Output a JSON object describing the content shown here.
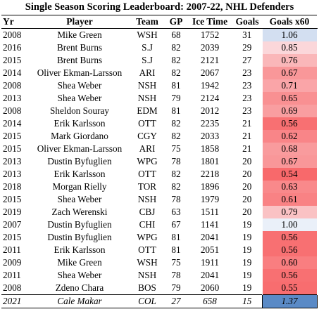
{
  "chart_data": {
    "type": "table",
    "title": "Single Season Scoring Leaderboard: 2007-22, NHL Defenders",
    "columns": [
      "Yr",
      "Player",
      "Team",
      "GP",
      "Ice Time",
      "Goals",
      "Goals x60"
    ],
    "rows": [
      {
        "yr": "2008",
        "player": "Mike Green",
        "team": "WSH",
        "gp": "68",
        "toi": "1752",
        "goals": "31",
        "gx60": "1.06"
      },
      {
        "yr": "2016",
        "player": "Brent Burns",
        "team": "S.J",
        "gp": "82",
        "toi": "2039",
        "goals": "29",
        "gx60": "0.85"
      },
      {
        "yr": "2015",
        "player": "Brent Burns",
        "team": "S.J",
        "gp": "82",
        "toi": "2121",
        "goals": "27",
        "gx60": "0.76"
      },
      {
        "yr": "2014",
        "player": "Oliver Ekman-Larsson",
        "team": "ARI",
        "gp": "82",
        "toi": "2067",
        "goals": "23",
        "gx60": "0.67"
      },
      {
        "yr": "2008",
        "player": "Shea Weber",
        "team": "NSH",
        "gp": "81",
        "toi": "1942",
        "goals": "23",
        "gx60": "0.71"
      },
      {
        "yr": "2013",
        "player": "Shea Weber",
        "team": "NSH",
        "gp": "79",
        "toi": "2124",
        "goals": "23",
        "gx60": "0.65"
      },
      {
        "yr": "2008",
        "player": "Sheldon Souray",
        "team": "EDM",
        "gp": "81",
        "toi": "2012",
        "goals": "23",
        "gx60": "0.69"
      },
      {
        "yr": "2014",
        "player": "Erik Karlsson",
        "team": "OTT",
        "gp": "82",
        "toi": "2235",
        "goals": "21",
        "gx60": "0.56"
      },
      {
        "yr": "2015",
        "player": "Mark Giordano",
        "team": "CGY",
        "gp": "82",
        "toi": "2033",
        "goals": "21",
        "gx60": "0.62"
      },
      {
        "yr": "2015",
        "player": "Oliver Ekman-Larsson",
        "team": "ARI",
        "gp": "75",
        "toi": "1858",
        "goals": "21",
        "gx60": "0.68"
      },
      {
        "yr": "2013",
        "player": "Dustin Byfuglien",
        "team": "WPG",
        "gp": "78",
        "toi": "1801",
        "goals": "20",
        "gx60": "0.67"
      },
      {
        "yr": "2013",
        "player": "Erik Karlsson",
        "team": "OTT",
        "gp": "82",
        "toi": "2218",
        "goals": "20",
        "gx60": "0.54"
      },
      {
        "yr": "2018",
        "player": "Morgan Rielly",
        "team": "TOR",
        "gp": "82",
        "toi": "1896",
        "goals": "20",
        "gx60": "0.63"
      },
      {
        "yr": "2015",
        "player": "Shea Weber",
        "team": "NSH",
        "gp": "78",
        "toi": "1979",
        "goals": "20",
        "gx60": "0.61"
      },
      {
        "yr": "2019",
        "player": "Zach Werenski",
        "team": "CBJ",
        "gp": "63",
        "toi": "1511",
        "goals": "20",
        "gx60": "0.79"
      },
      {
        "yr": "2007",
        "player": "Dustin Byfuglien",
        "team": "CHI",
        "gp": "67",
        "toi": "1141",
        "goals": "19",
        "gx60": "1.00"
      },
      {
        "yr": "2015",
        "player": "Dustin Byfuglien",
        "team": "WPG",
        "gp": "81",
        "toi": "2041",
        "goals": "19",
        "gx60": "0.56"
      },
      {
        "yr": "2011",
        "player": "Erik Karlsson",
        "team": "OTT",
        "gp": "81",
        "toi": "2051",
        "goals": "19",
        "gx60": "0.56"
      },
      {
        "yr": "2009",
        "player": "Mike Green",
        "team": "WSH",
        "gp": "75",
        "toi": "1911",
        "goals": "19",
        "gx60": "0.60"
      },
      {
        "yr": "2011",
        "player": "Shea Weber",
        "team": "NSH",
        "gp": "78",
        "toi": "2041",
        "goals": "19",
        "gx60": "0.56"
      },
      {
        "yr": "2008",
        "player": "Zdeno Chara",
        "team": "BOS",
        "gp": "79",
        "toi": "2060",
        "goals": "19",
        "gx60": "0.55"
      }
    ],
    "highlight_row": {
      "yr": "2021",
      "player": "Cale Makar",
      "team": "COL",
      "gp": "27",
      "toi": "658",
      "goals": "15",
      "gx60": "1.37"
    },
    "color_scale": {
      "low": "#f8696b",
      "mid": "#fcfcff",
      "high": "#5a8ac6",
      "min": 0.54,
      "max": 1.37
    }
  }
}
